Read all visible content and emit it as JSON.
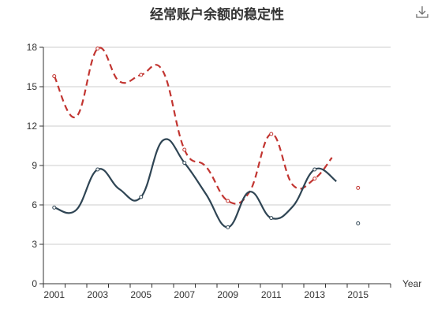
{
  "toolbar": {
    "download_icon": "download-icon"
  },
  "chart_data": {
    "type": "line",
    "title": "经常账户余额的稳定性",
    "xlabel": "Year",
    "ylabel": "",
    "xlim": [
      2000.5,
      2016.5
    ],
    "ylim": [
      0,
      18
    ],
    "grid": true,
    "y_ticks": [
      0,
      3,
      6,
      9,
      12,
      15,
      18
    ],
    "x_ticks": [
      2001,
      2003,
      2005,
      2007,
      2009,
      2011,
      2013,
      2015
    ],
    "series": [
      {
        "color": "#c23531",
        "line_style": "dashed",
        "x": [
          2001,
          2002,
          2003,
          2004,
          2005,
          2006,
          2007,
          2008,
          2009,
          2010,
          2011,
          2012,
          2013,
          2013.8
        ],
        "y": [
          15.8,
          12.7,
          17.9,
          15.4,
          15.9,
          16.2,
          10.2,
          8.9,
          6.3,
          7.0,
          11.4,
          7.5,
          8.0,
          9.6
        ],
        "markers_at": [
          2001,
          2003,
          2005,
          2007,
          2009,
          2011,
          2013
        ],
        "isolated_points": [
          {
            "x": 2015,
            "y": 7.3
          }
        ]
      },
      {
        "color": "#2f4554",
        "line_style": "solid",
        "x": [
          2001,
          2002,
          2003,
          2004,
          2005,
          2006,
          2007,
          2008,
          2009,
          2010,
          2011,
          2012,
          2013,
          2014
        ],
        "y": [
          5.8,
          5.6,
          8.7,
          7.2,
          6.6,
          10.9,
          9.2,
          6.8,
          4.3,
          7.0,
          5.0,
          5.9,
          8.7,
          7.8
        ],
        "markers_at": [
          2001,
          2003,
          2005,
          2007,
          2009,
          2011,
          2013
        ],
        "isolated_points": [
          {
            "x": 2015,
            "y": 4.6
          }
        ]
      }
    ]
  }
}
